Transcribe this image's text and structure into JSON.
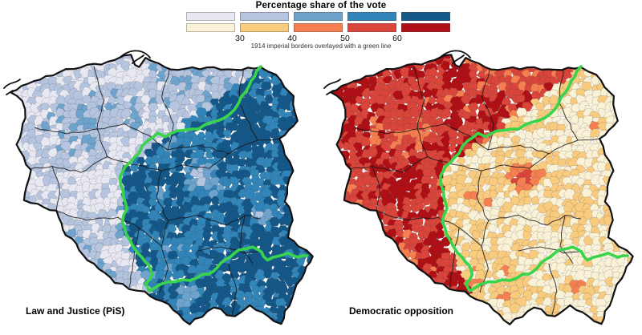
{
  "legend": {
    "title": "Percentage share of the vote",
    "ticks": [
      "30",
      "40",
      "50",
      "60"
    ],
    "note": "1914 imperial borders overlayed with a green line",
    "pis_colors": [
      "#e8e8f3",
      "#b5c4df",
      "#6da3cc",
      "#3285b9",
      "#14588a"
    ],
    "opposition_colors": [
      "#faf2d7",
      "#f9cb7f",
      "#f57f50",
      "#d9453a",
      "#b01015"
    ]
  },
  "border_line": {
    "color": "#39d44c"
  },
  "maps": [
    {
      "label": "Law and Justice (PiS)"
    },
    {
      "label": "Democratic opposition"
    }
  ]
}
